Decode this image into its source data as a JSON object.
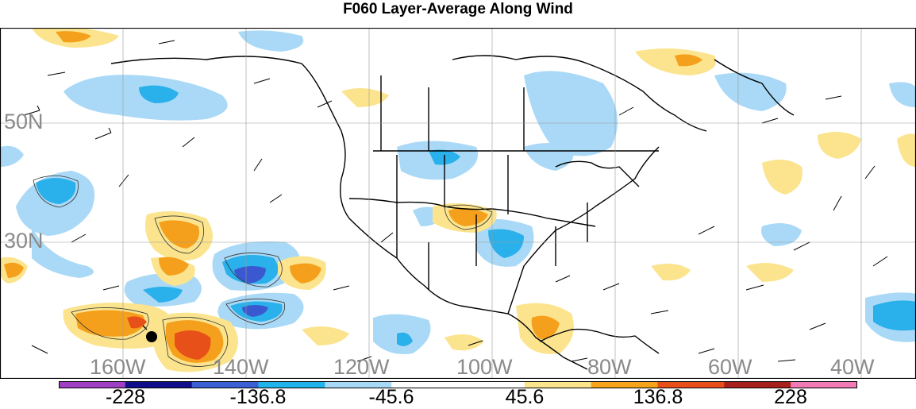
{
  "title": "F060 Layer-Average Along Wind",
  "lat_labels": [
    "50N",
    "30N"
  ],
  "lon_labels": [
    "160W",
    "140W",
    "120W",
    "100W",
    "80W",
    "60W",
    "40W"
  ],
  "colorbar": {
    "labels": [
      "-228",
      "-136.8",
      "-45.6",
      "45.6",
      "136.8",
      "228"
    ],
    "colors": [
      "#9e3fc4",
      "#0f0f8c",
      "#3c5fd6",
      "#1fb4ea",
      "#a7d8f6",
      "#ffffff",
      "#ffffff",
      "#fbe58b",
      "#f6a21a",
      "#ea4e18",
      "#a8201c",
      "#f07ab4"
    ]
  },
  "fill_colors": {
    "light_blue": "#a9d9f6",
    "blue": "#2ab0ea",
    "dark_blue": "#3a58cf",
    "light_yellow": "#fbe48d",
    "orange": "#f5a01c",
    "red_orange": "#e8501a"
  },
  "marker": "black-dot"
}
